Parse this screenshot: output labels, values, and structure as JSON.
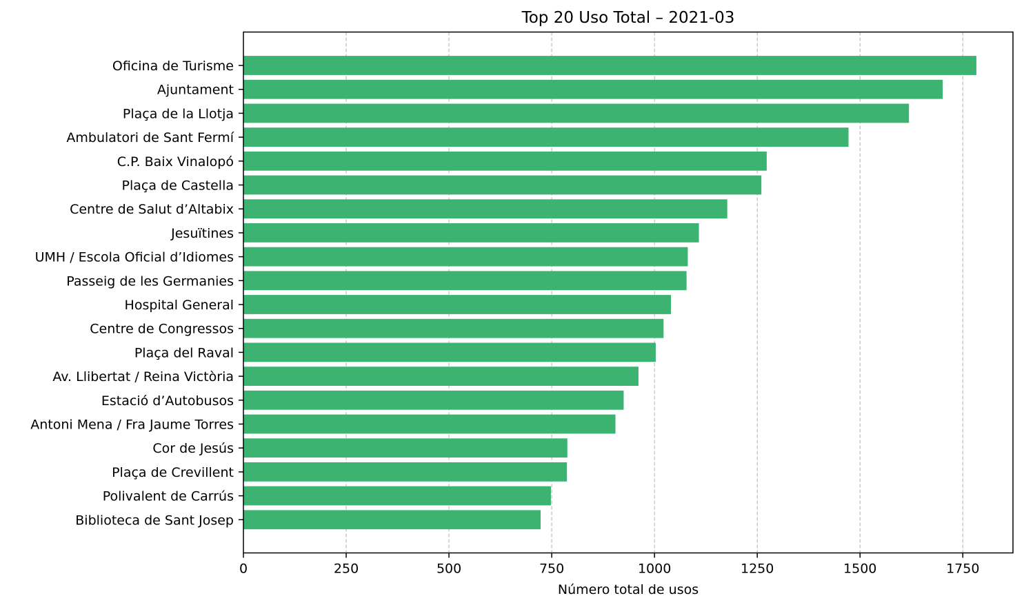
{
  "chart_data": {
    "type": "bar",
    "orientation": "horizontal",
    "title": "Top 20 Uso Total – 2021-03",
    "xlabel": "Número total de usos",
    "ylabel": "",
    "xlim": [
      0,
      1872
    ],
    "xticks": [
      0,
      250,
      500,
      750,
      1000,
      1250,
      1500,
      1750
    ],
    "grid": "x-dashed",
    "bar_color": "#3cb371",
    "categories": [
      "Oficina de Turisme",
      "Ajuntament",
      "Plaça de la Llotja",
      "Ambulatori de Sant Fermí",
      "C.P. Baix Vinalopó",
      "Plaça de Castella",
      "Centre de Salut d’Altabix",
      "Jesuïtines",
      "UMH / Escola Oficial d’Idiomes",
      "Passeig de les Germanies",
      "Hospital General",
      "Centre de Congressos",
      "Plaça del Raval",
      "Av. Llibertat / Reina Victòria",
      "Estació d’Autobusos",
      "Antoni Mena / Fra Jaume Torres",
      "Cor de Jesús",
      "Plaça de Crevillent",
      "Polivalent de Carrús",
      "Biblioteca de Sant Josep"
    ],
    "values": [
      1783,
      1701,
      1619,
      1472,
      1273,
      1260,
      1177,
      1108,
      1081,
      1078,
      1040,
      1022,
      1003,
      961,
      925,
      905,
      788,
      787,
      748,
      723
    ]
  }
}
